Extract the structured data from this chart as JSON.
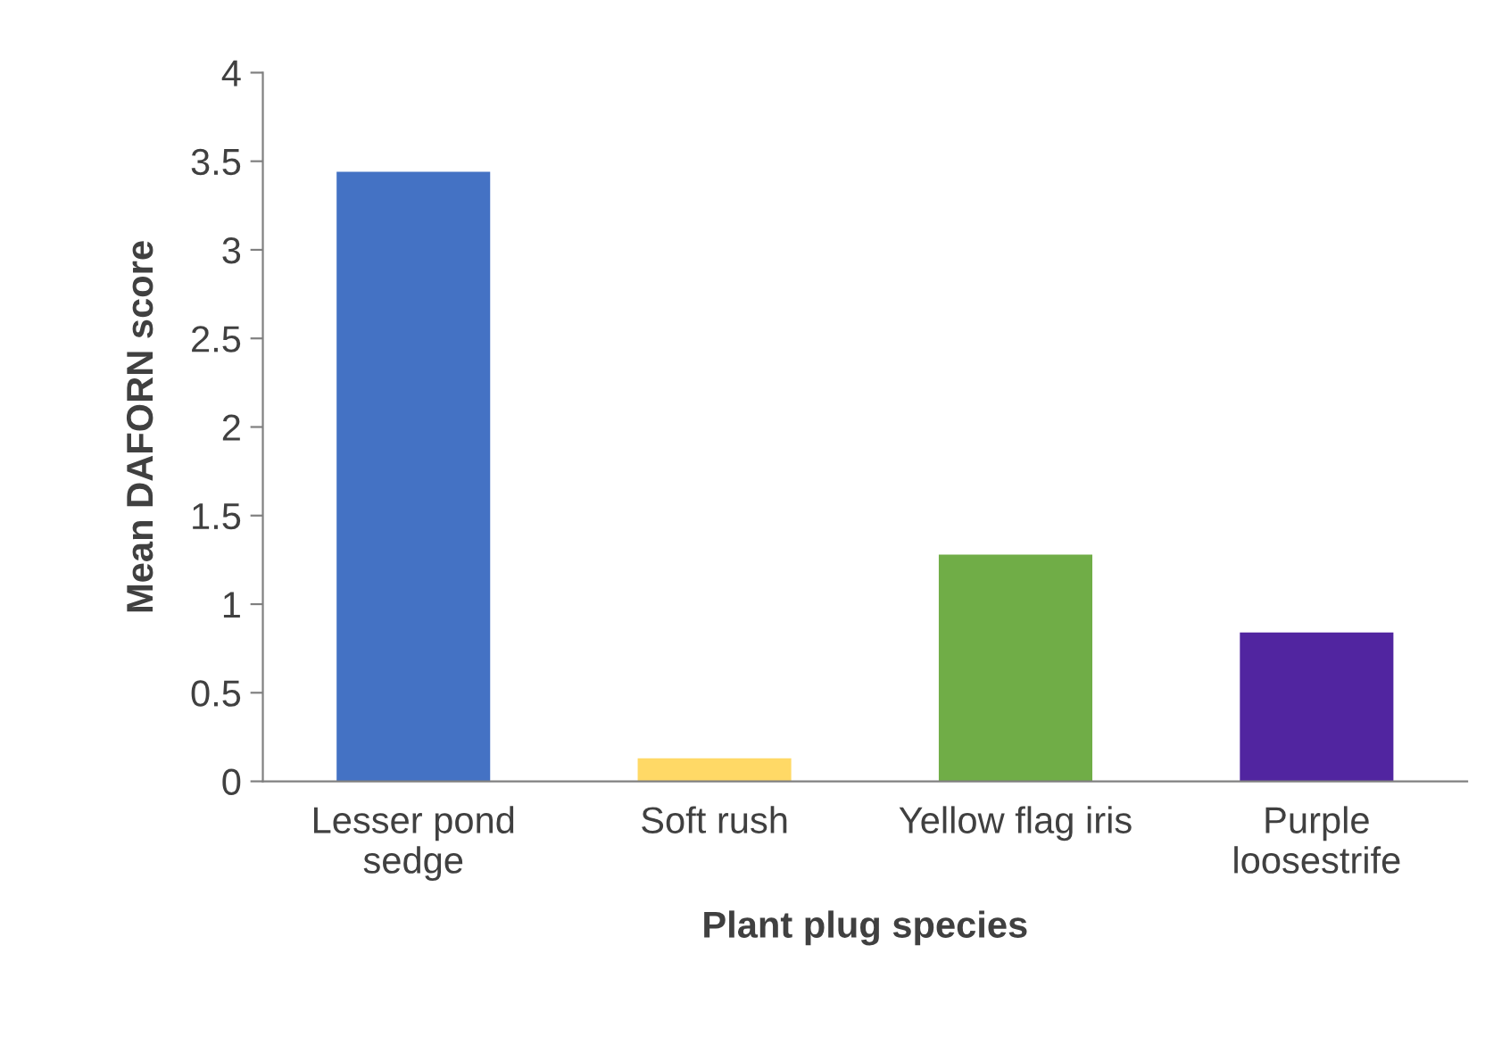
{
  "chart_data": {
    "type": "bar",
    "xlabel": "Plant plug species",
    "ylabel": "Mean DAFORN score",
    "categories": [
      "Lesser pond\nsedge",
      "Soft rush",
      "Yellow flag iris",
      "Purple\nloosestrife"
    ],
    "values": [
      3.44,
      0.13,
      1.28,
      0.84
    ],
    "colors": [
      "#4472c4",
      "#ffd966",
      "#70ad47",
      "#5125a0"
    ],
    "ylim": [
      0,
      4
    ],
    "yticks": [
      0,
      0.5,
      1,
      1.5,
      2,
      2.5,
      3,
      3.5,
      4
    ],
    "grid": false
  }
}
